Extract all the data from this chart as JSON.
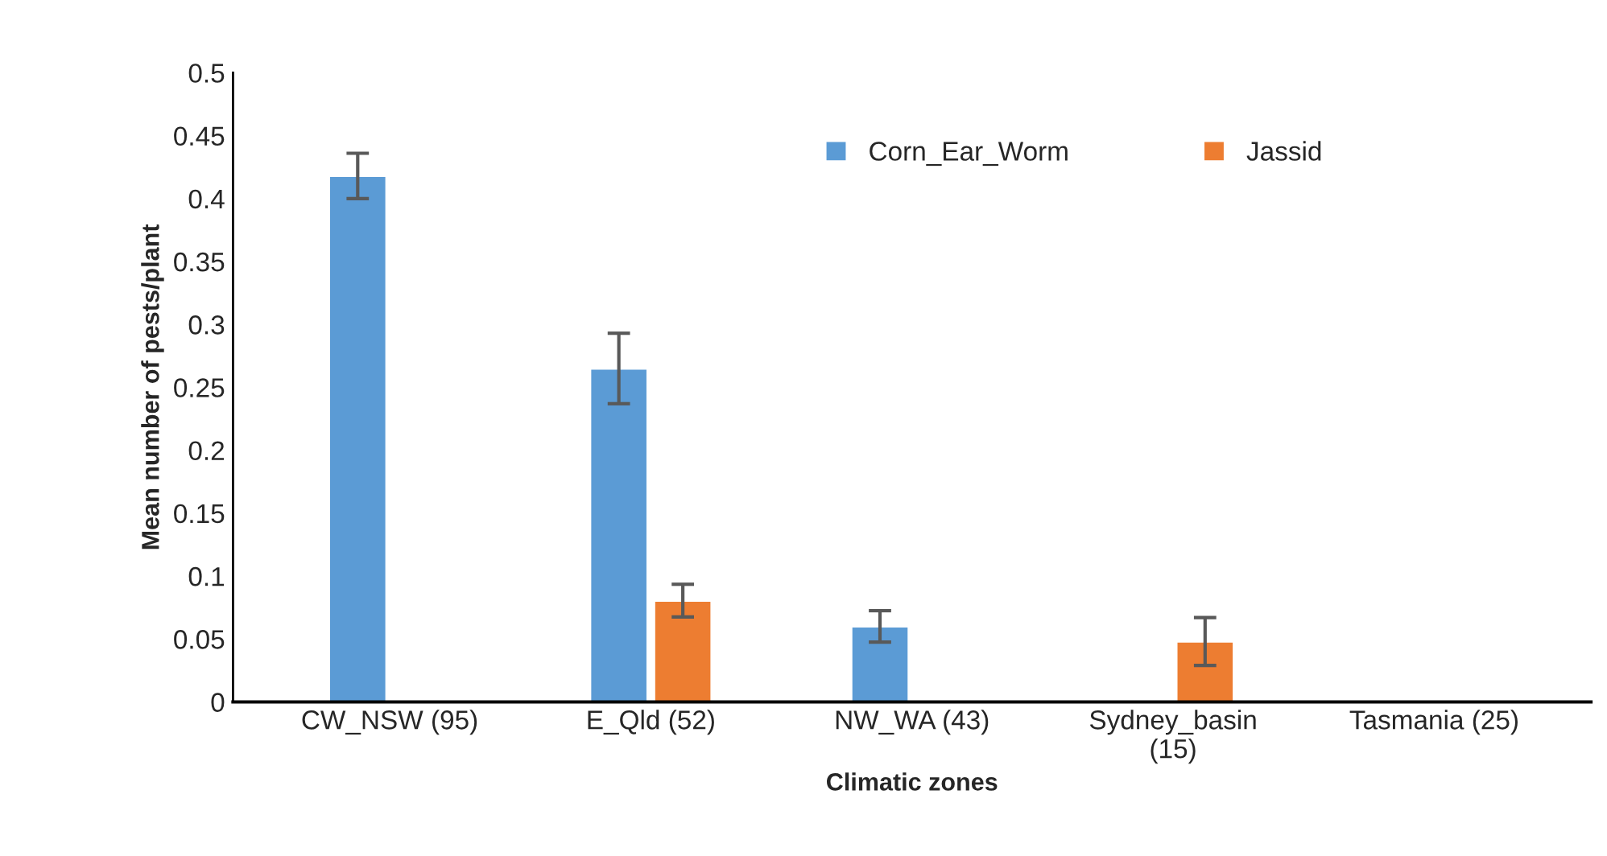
{
  "chart_data": {
    "type": "bar",
    "xlabel": "Climatic zones",
    "ylabel": "Mean number of pests/plant",
    "categories": [
      "CW_NSW (95)",
      "E_Qld (52)",
      "NW_WA (43)",
      "Sydney_basin\n(15)",
      "Tasmania (25)"
    ],
    "series": [
      {
        "name": "Corn_Ear_Worm",
        "color": "#5b9bd5",
        "values": [
          0.418,
          0.265,
          0.06,
          null,
          null
        ],
        "errors": [
          0.018,
          0.028,
          0.0125,
          null,
          null
        ]
      },
      {
        "name": "Jassid",
        "color": "#ed7d31",
        "values": [
          null,
          0.0805,
          null,
          0.048,
          null
        ],
        "errors": [
          null,
          0.013,
          null,
          0.019,
          null
        ]
      }
    ],
    "ylim": [
      0,
      0.5
    ],
    "yticks": [
      0,
      0.05,
      0.1,
      0.15,
      0.2,
      0.25,
      0.3,
      0.35,
      0.4,
      0.45,
      0.5
    ],
    "grid": false,
    "legend": "top right"
  }
}
